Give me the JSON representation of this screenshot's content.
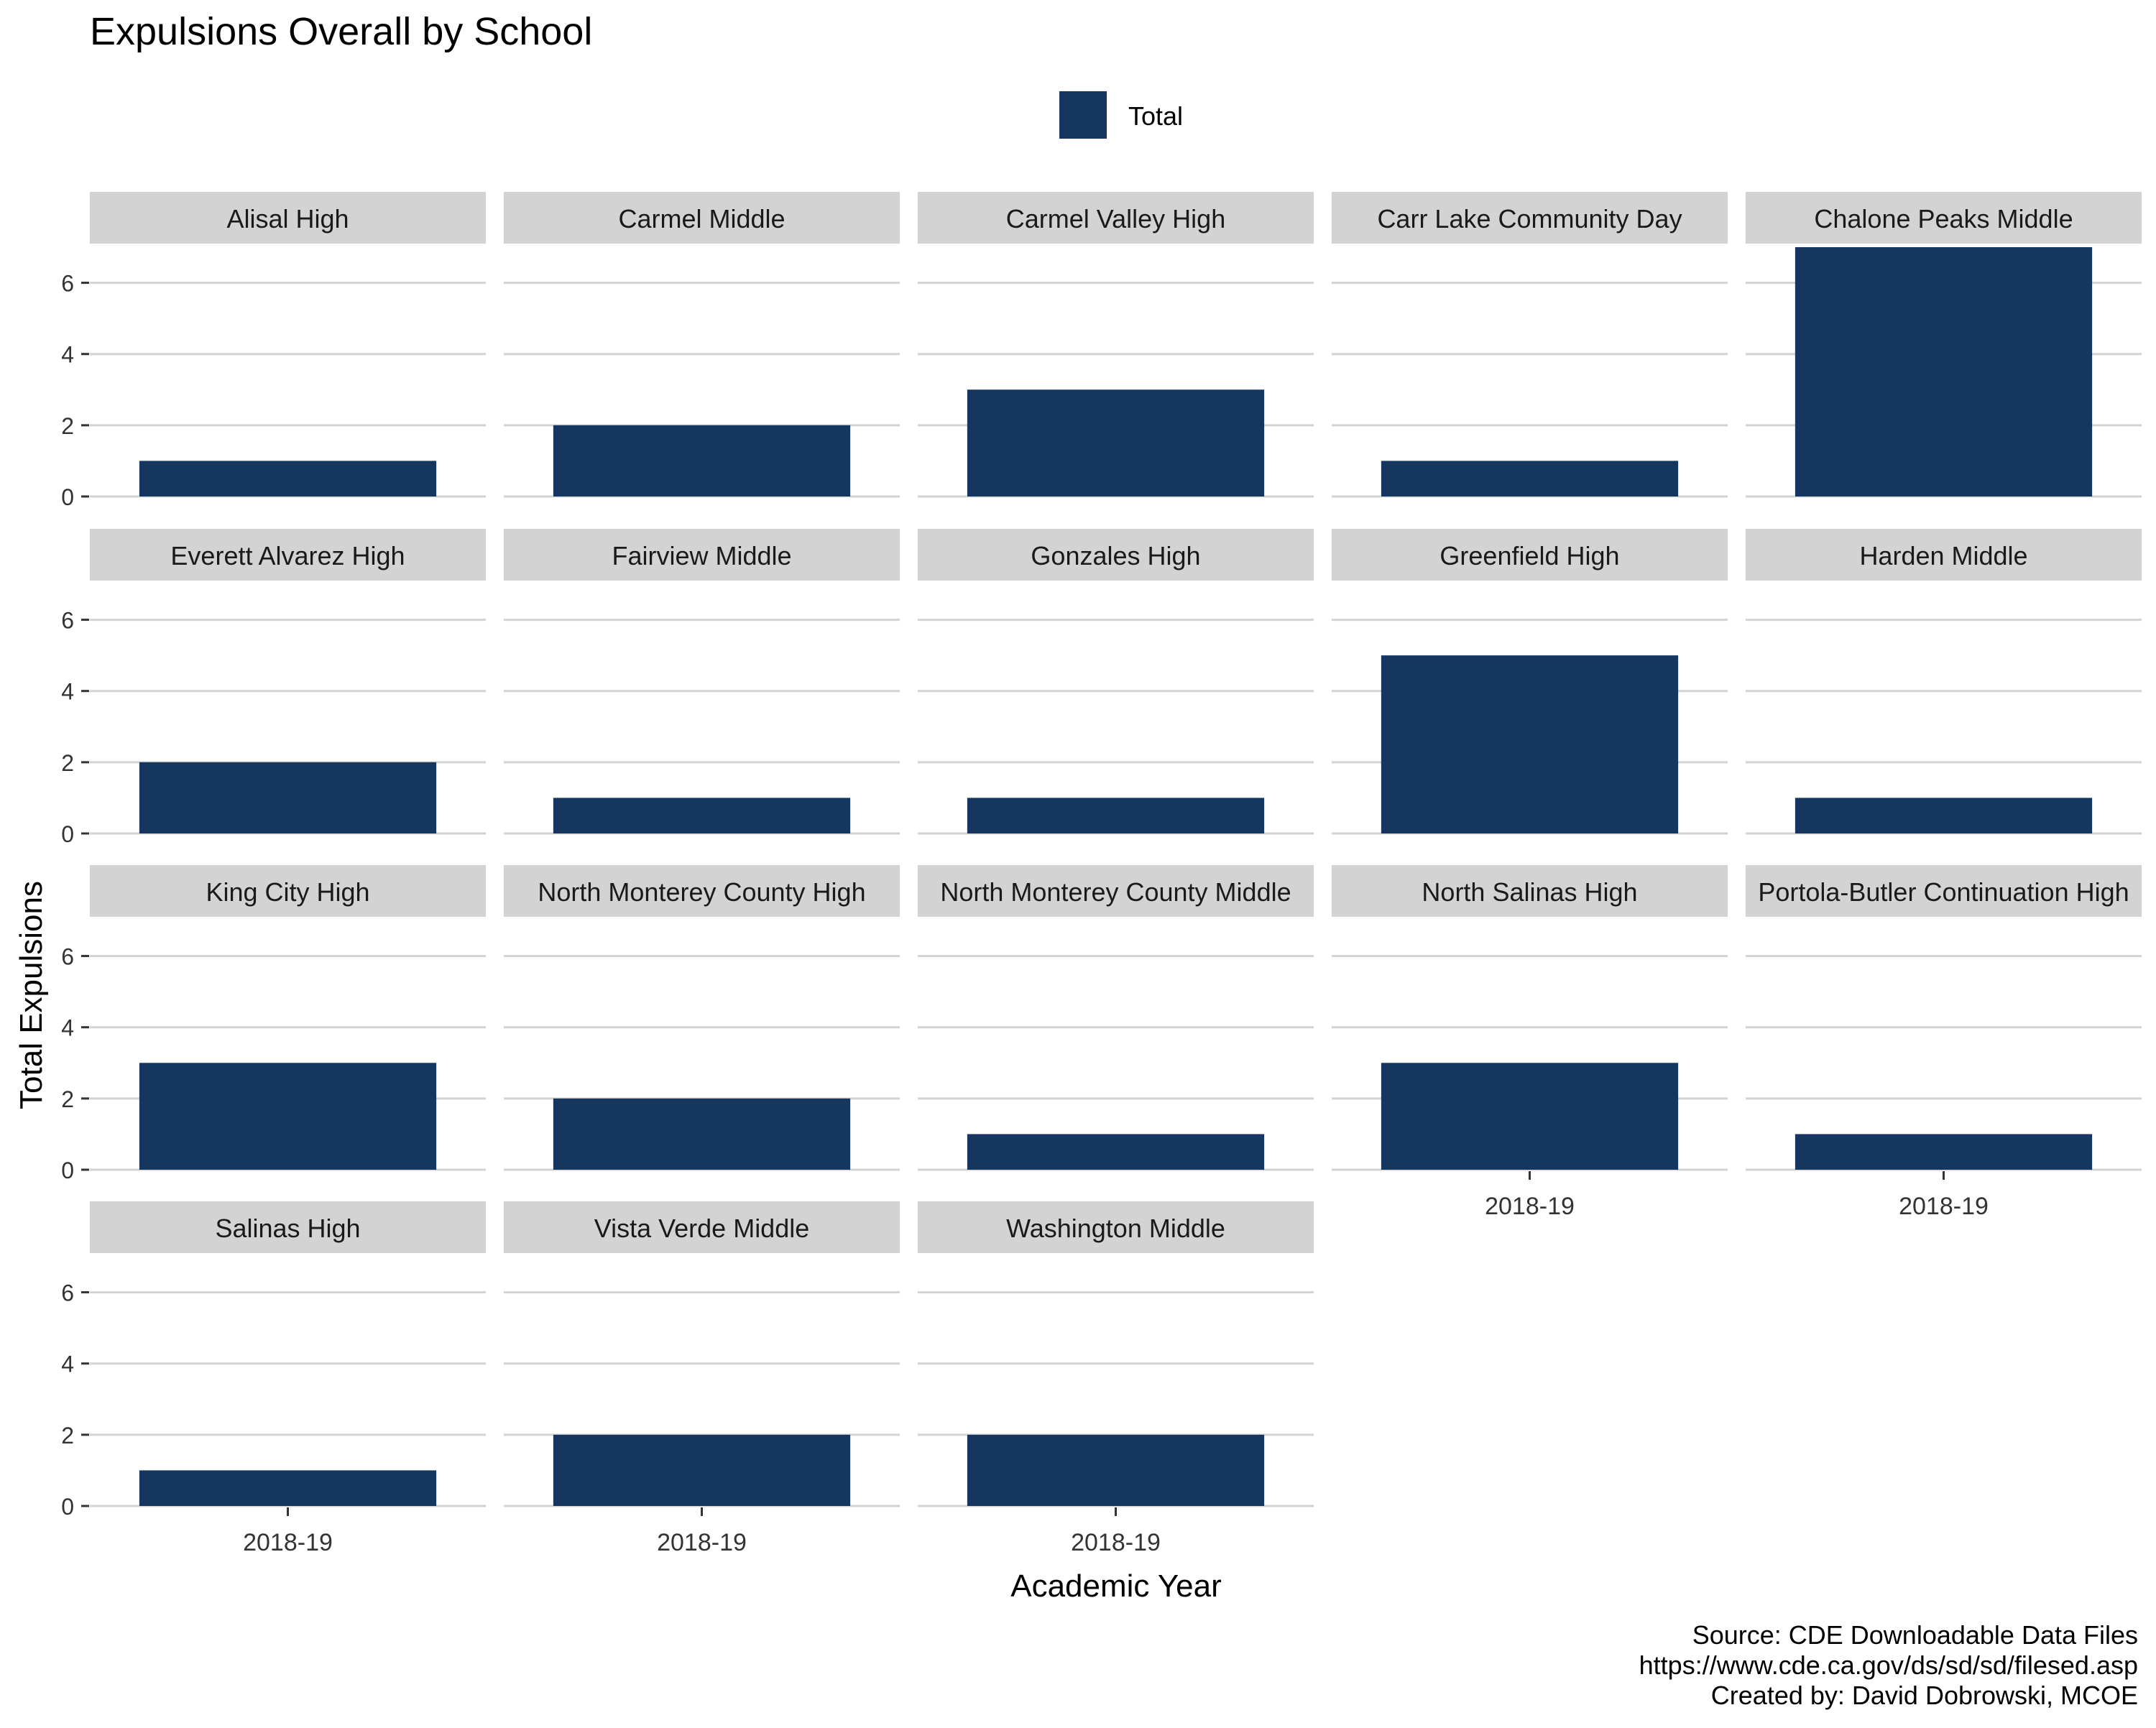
{
  "chart_data": {
    "type": "bar",
    "title": "Expulsions Overall by School",
    "xlabel": "Academic Year",
    "ylabel": "Total Expulsions",
    "ylim": [
      0,
      7
    ],
    "y_ticks": [
      0,
      2,
      4,
      6
    ],
    "legend": {
      "placement": "top",
      "entries": [
        {
          "label": "Total",
          "color": "#15365e"
        }
      ]
    },
    "grid": true,
    "categories": [
      "2018-19"
    ],
    "panels": [
      {
        "name": "Alisal High",
        "values": [
          1
        ]
      },
      {
        "name": "Carmel Middle",
        "values": [
          2
        ]
      },
      {
        "name": "Carmel Valley High",
        "values": [
          3
        ]
      },
      {
        "name": "Carr Lake Community Day",
        "values": [
          1
        ]
      },
      {
        "name": "Chalone Peaks Middle",
        "values": [
          7
        ]
      },
      {
        "name": "Everett Alvarez High",
        "values": [
          2
        ]
      },
      {
        "name": "Fairview Middle",
        "values": [
          1
        ]
      },
      {
        "name": "Gonzales High",
        "values": [
          1
        ]
      },
      {
        "name": "Greenfield High",
        "values": [
          5
        ]
      },
      {
        "name": "Harden Middle",
        "values": [
          1
        ]
      },
      {
        "name": "King City High",
        "values": [
          3
        ]
      },
      {
        "name": "North Monterey County High",
        "values": [
          2
        ]
      },
      {
        "name": "North Monterey County Middle",
        "values": [
          1
        ]
      },
      {
        "name": "North Salinas High",
        "values": [
          3
        ]
      },
      {
        "name": "Portola-Butler Continuation High",
        "values": [
          1
        ]
      },
      {
        "name": "Salinas High",
        "values": [
          1
        ]
      },
      {
        "name": "Vista Verde Middle",
        "values": [
          2
        ]
      },
      {
        "name": "Washington Middle",
        "values": [
          2
        ]
      }
    ],
    "caption": [
      "Source: CDE Downloadable Data Files",
      "https://www.cde.ca.gov/ds/sd/sd/filesed.asp",
      "Created by: David Dobrowski, MCOE"
    ],
    "colors": {
      "bar": "#15365e",
      "strip": "#d3d3d3",
      "grid": "#d3d3d3",
      "text": "#333333"
    }
  }
}
